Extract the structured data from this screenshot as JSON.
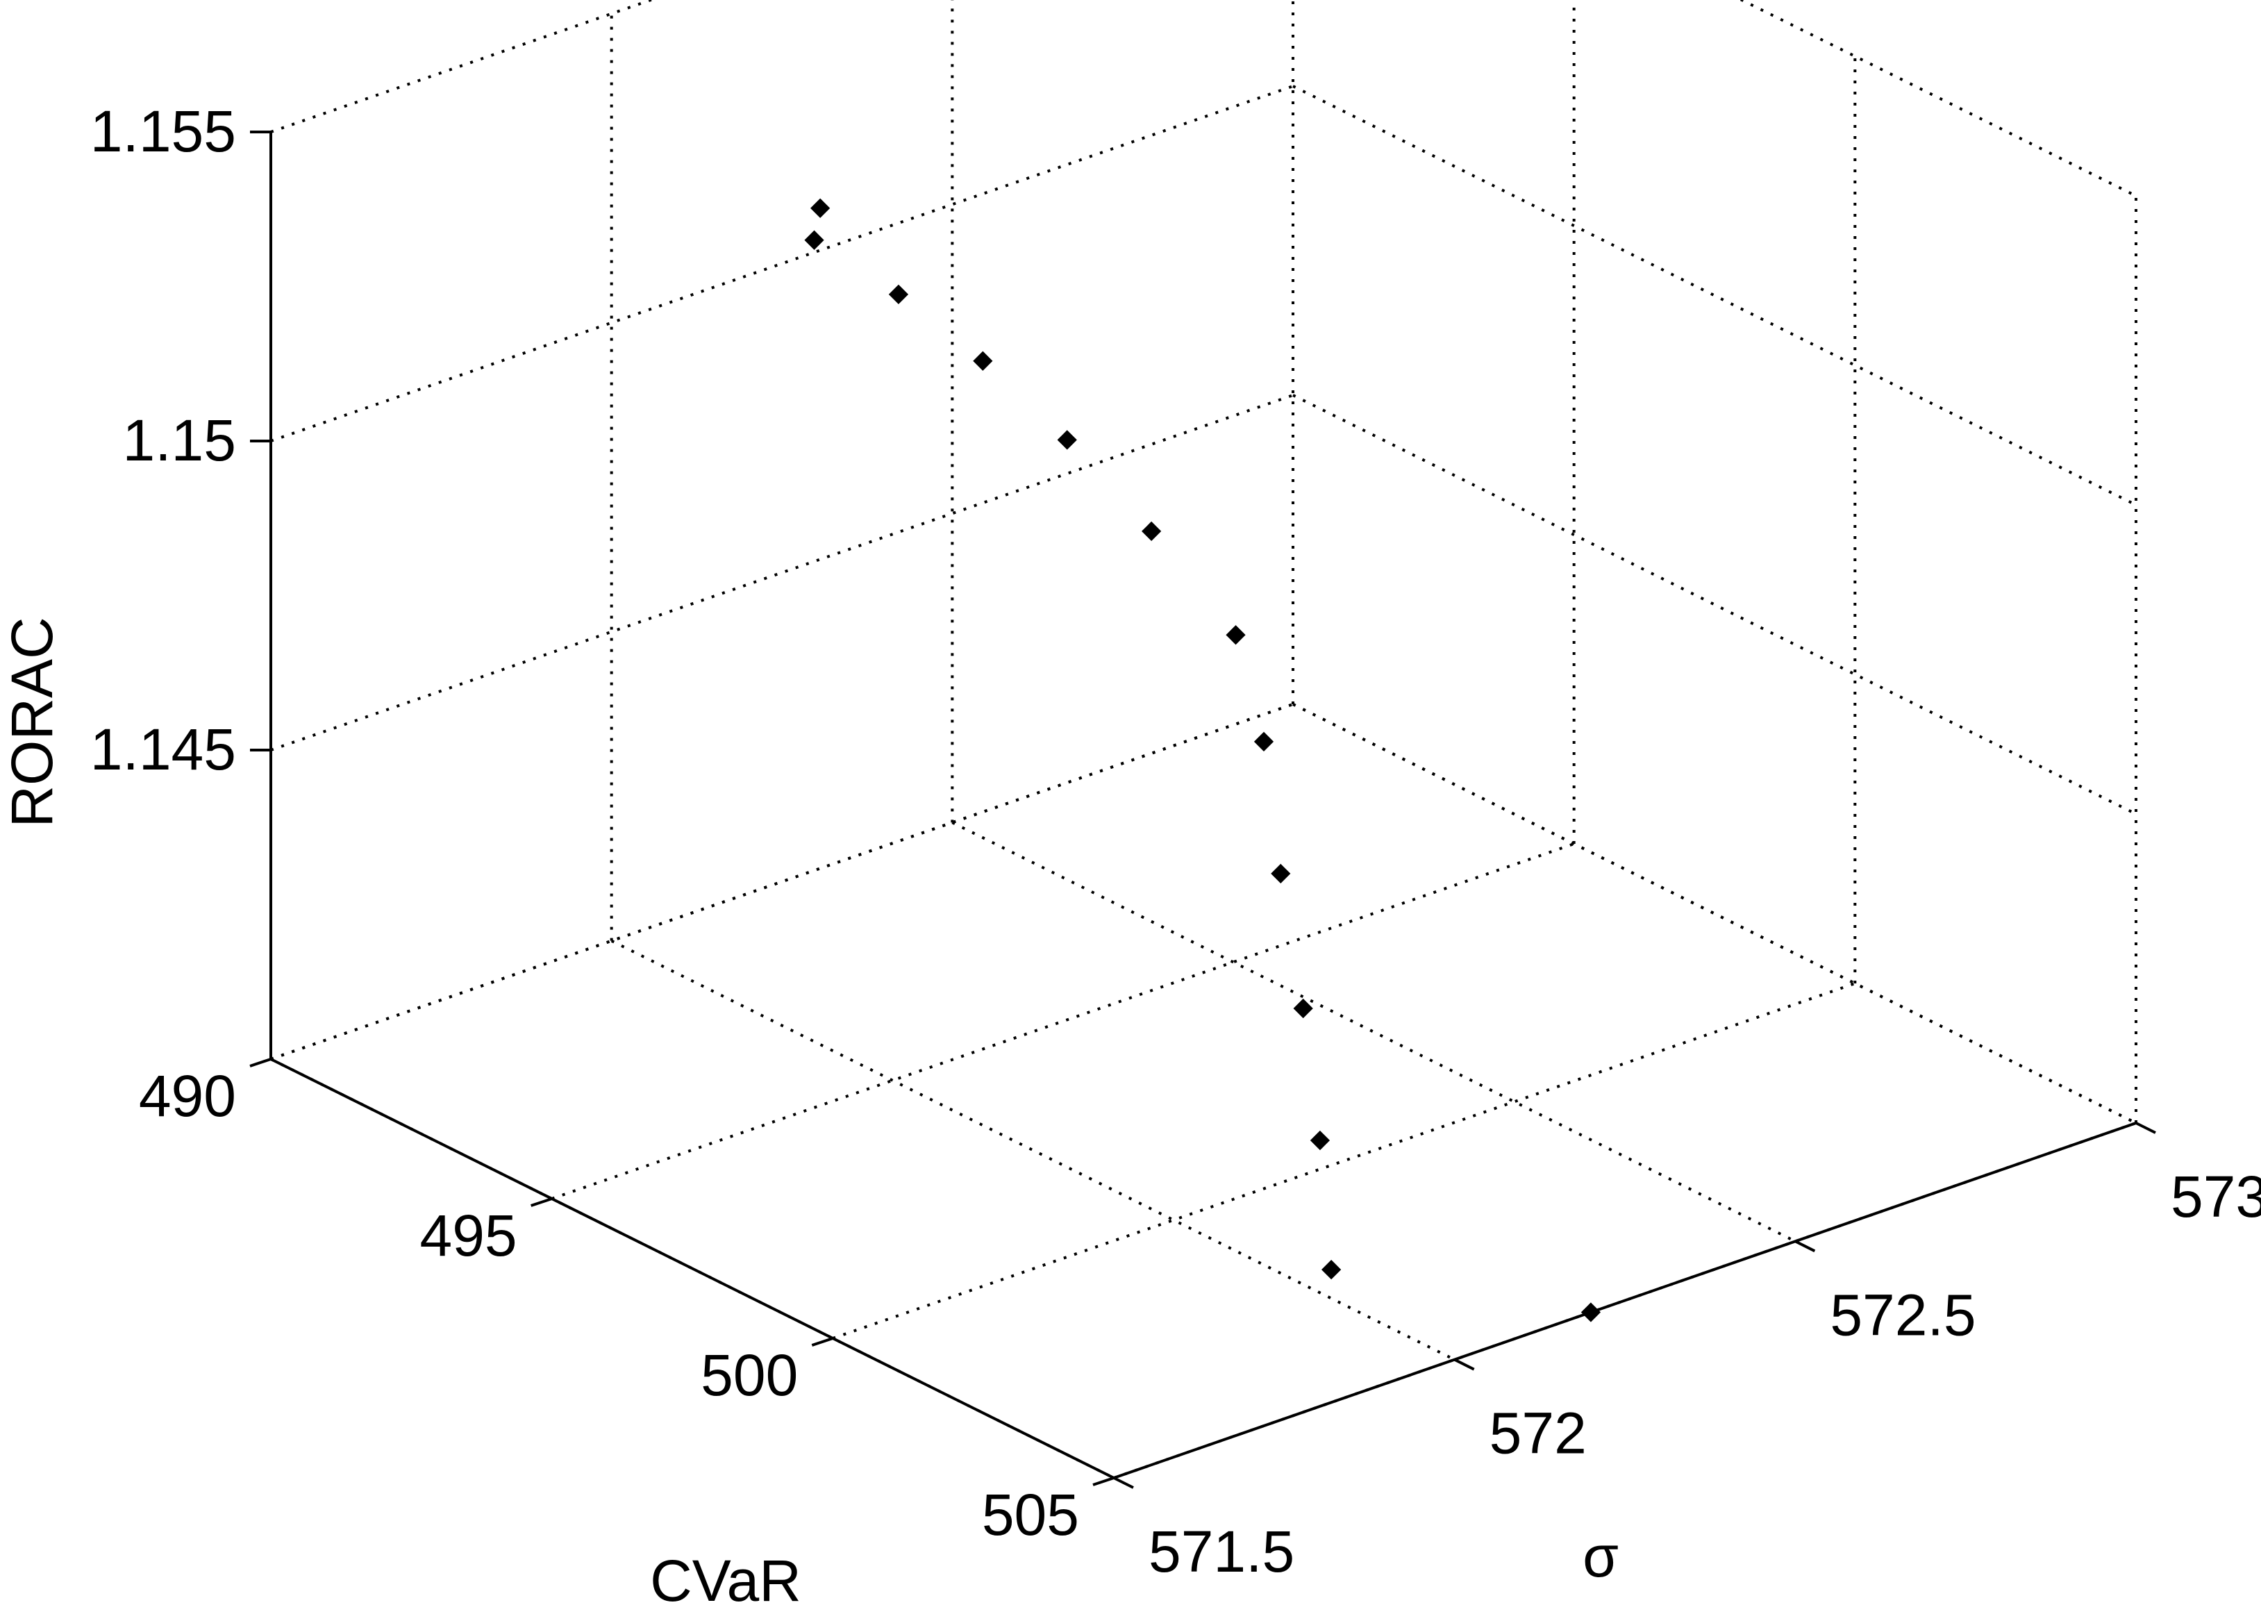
{
  "chart_data": {
    "type": "scatter",
    "title": "",
    "xlabel": "σ",
    "ylabel": "CVaR",
    "zlabel": "RORAC",
    "grid": true,
    "xlim": [
      571.5,
      573
    ],
    "ylim": [
      490,
      505
    ],
    "zlim": [
      1.14,
      1.155
    ],
    "xticks": [
      "571.5",
      "572",
      "572.5",
      "573"
    ],
    "yticks": [
      "490",
      "495",
      "500",
      "505"
    ],
    "zticks": [
      "1.145",
      "1.15",
      "1.155"
    ],
    "series": [
      {
        "marker": "diamond",
        "color": "#000000",
        "points": [
          {
            "x": 572.05,
            "y": 493.0,
            "z": 1.1525
          },
          {
            "x": 572.05,
            "y": 494.5,
            "z": 1.1523
          },
          {
            "x": 572.05,
            "y": 496.0,
            "z": 1.1519
          },
          {
            "x": 572.05,
            "y": 497.5,
            "z": 1.1513
          },
          {
            "x": 572.05,
            "y": 499.0,
            "z": 1.1505
          },
          {
            "x": 572.05,
            "y": 500.5,
            "z": 1.1495
          },
          {
            "x": 572.05,
            "y": 501.0,
            "z": 1.148
          },
          {
            "x": 572.05,
            "y": 501.3,
            "z": 1.146
          },
          {
            "x": 572.05,
            "y": 501.7,
            "z": 1.144
          },
          {
            "x": 572.05,
            "y": 502.0,
            "z": 1.142
          },
          {
            "x": 572.05,
            "y": 502.2,
            "z": 1.14
          },
          {
            "x": 572.2,
            "y": 505.0,
            "z": 1.14
          },
          {
            "x": 572.1,
            "y": 492.5,
            "z": 1.1526
          }
        ]
      }
    ]
  }
}
